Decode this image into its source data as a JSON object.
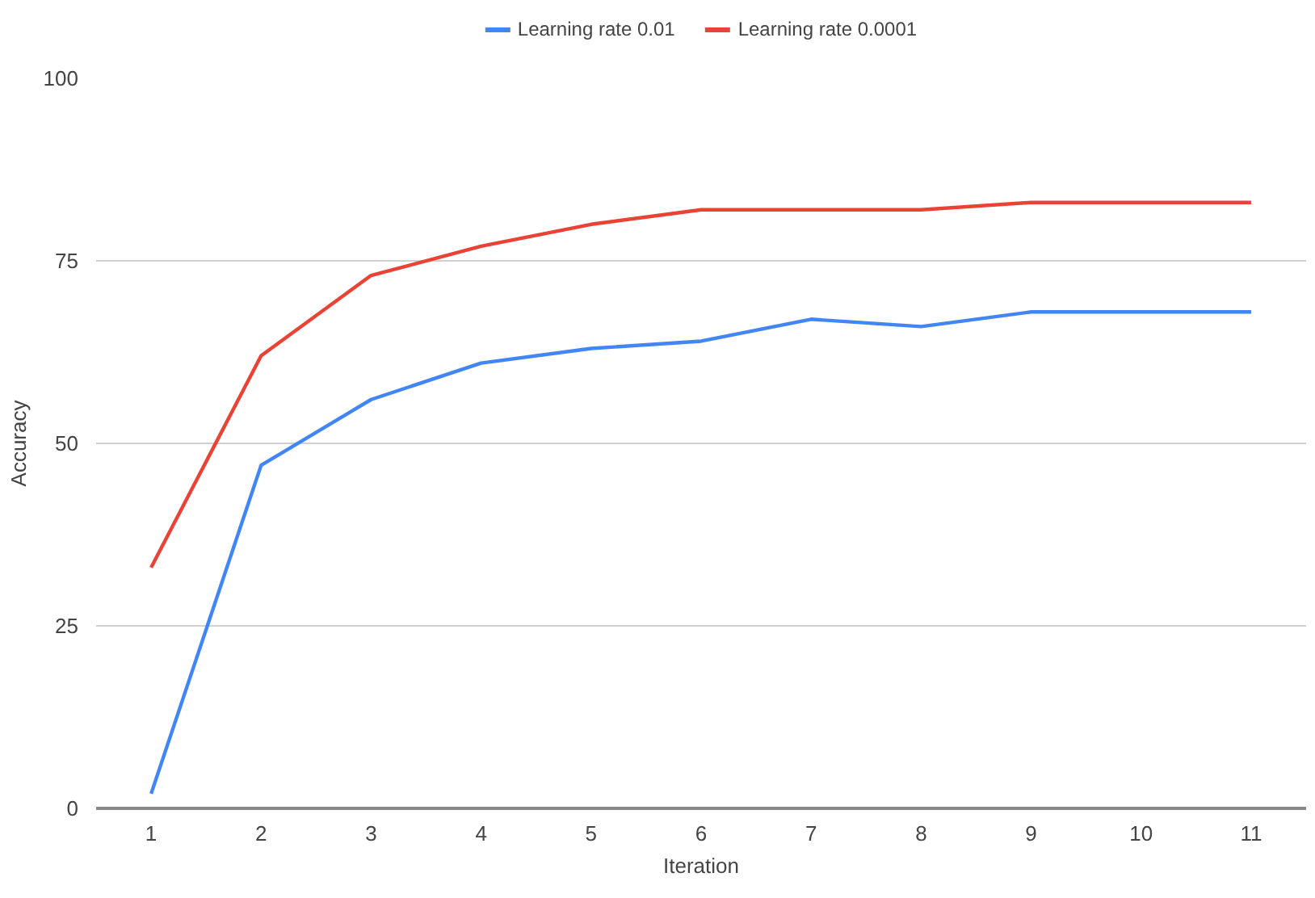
{
  "chart_data": {
    "type": "line",
    "xlabel": "Iteration",
    "ylabel": "Accuracy",
    "categories": [
      "1",
      "2",
      "3",
      "4",
      "5",
      "6",
      "7",
      "8",
      "9",
      "10",
      "11"
    ],
    "series": [
      {
        "name": "Learning rate 0.01",
        "color": "#4285f4",
        "values": [
          2,
          47,
          56,
          61,
          63,
          64,
          67,
          66,
          68,
          68,
          68
        ]
      },
      {
        "name": "Learning rate 0.0001",
        "color": "#ea4335",
        "values": [
          33,
          62,
          73,
          77,
          80,
          82,
          82,
          82,
          83,
          83,
          83
        ]
      }
    ],
    "ylim": [
      0,
      100
    ],
    "yticks": [
      0,
      25,
      50,
      75,
      100
    ],
    "grid": "y",
    "legend": "top",
    "marker": "none",
    "line_style": "solid"
  }
}
